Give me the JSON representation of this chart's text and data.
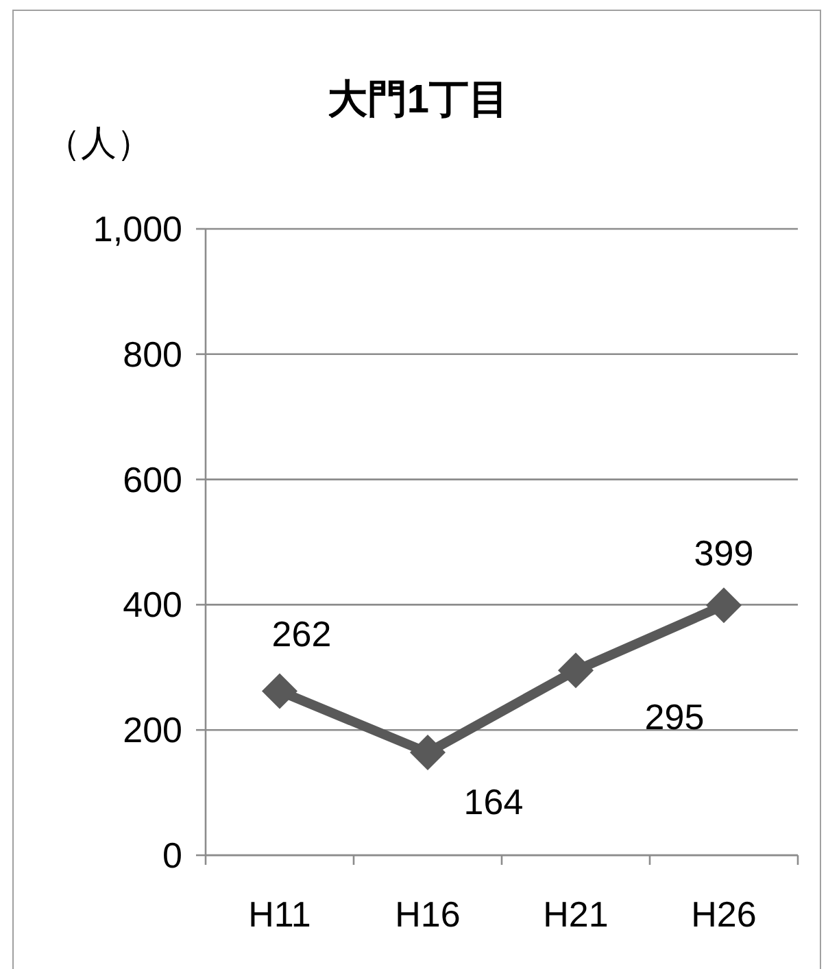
{
  "chart_data": {
    "type": "line",
    "title": "大門1丁目",
    "ylabel": "（人）",
    "categories": [
      "H11",
      "H16",
      "H21",
      "H26"
    ],
    "series": [
      {
        "color": "#595959",
        "values": [
          262,
          164,
          295,
          399
        ]
      }
    ],
    "ylim": [
      0,
      1000
    ],
    "yticks": [
      0,
      200,
      400,
      600,
      800,
      {
        "value": 1000,
        "label": "1,000"
      }
    ],
    "grid": "y",
    "marker": "diamond",
    "data_labels": true
  }
}
